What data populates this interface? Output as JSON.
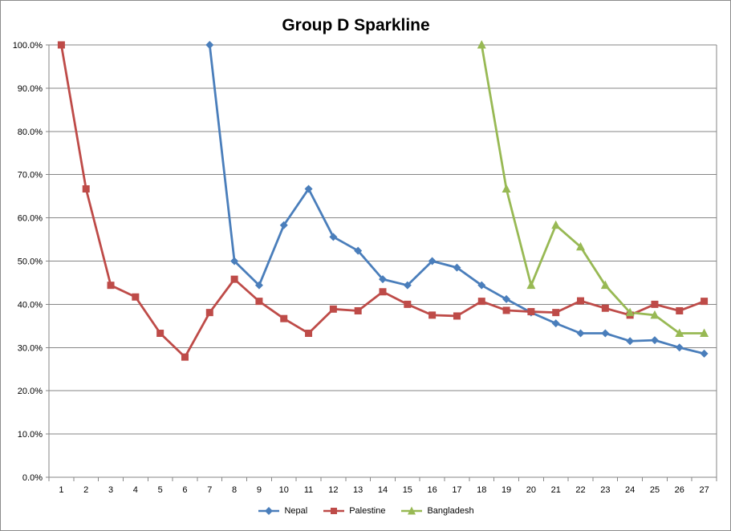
{
  "chart_data": {
    "type": "line",
    "title": "Group D Sparkline",
    "xlabel": "",
    "ylabel": "",
    "categories": [
      "1",
      "2",
      "3",
      "4",
      "5",
      "6",
      "7",
      "8",
      "9",
      "10",
      "11",
      "12",
      "13",
      "14",
      "15",
      "16",
      "17",
      "18",
      "19",
      "20",
      "21",
      "22",
      "23",
      "24",
      "25",
      "26",
      "27"
    ],
    "ylim": [
      0,
      100
    ],
    "yticks": [
      "0.0%",
      "10.0%",
      "20.0%",
      "30.0%",
      "40.0%",
      "50.0%",
      "60.0%",
      "70.0%",
      "80.0%",
      "90.0%",
      "100.0%"
    ],
    "grid": "horizontal",
    "legend_position": "bottom",
    "series": [
      {
        "name": "Nepal",
        "color": "#4a7ebb",
        "marker": "diamond",
        "values": [
          null,
          null,
          null,
          null,
          null,
          null,
          100.0,
          50.0,
          44.4,
          58.3,
          66.7,
          55.6,
          52.4,
          45.8,
          44.4,
          50.0,
          48.5,
          44.4,
          41.2,
          38.1,
          35.6,
          33.3,
          33.3,
          31.5,
          31.7,
          30.0,
          28.6
        ]
      },
      {
        "name": "Palestine",
        "color": "#be4b48",
        "marker": "square",
        "values": [
          100.0,
          66.7,
          44.4,
          41.7,
          33.3,
          27.8,
          38.1,
          45.8,
          40.7,
          36.7,
          33.3,
          38.9,
          38.5,
          42.9,
          40.0,
          37.5,
          37.3,
          40.7,
          38.6,
          38.3,
          38.1,
          40.8,
          39.1,
          37.5,
          40.0,
          38.5,
          40.7
        ]
      },
      {
        "name": "Bangladesh",
        "color": "#98b954",
        "marker": "triangle",
        "values": [
          null,
          null,
          null,
          null,
          null,
          null,
          null,
          null,
          null,
          null,
          null,
          null,
          null,
          null,
          null,
          null,
          null,
          100.0,
          66.7,
          44.4,
          58.3,
          53.3,
          44.4,
          38.1,
          37.5,
          33.3,
          33.3
        ]
      }
    ]
  }
}
